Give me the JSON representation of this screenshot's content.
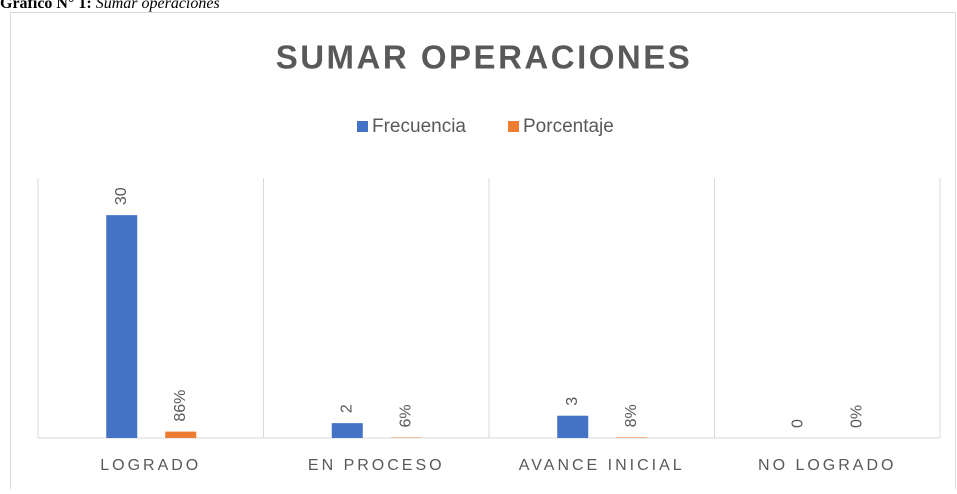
{
  "caption": {
    "label": "Gráfico N° 1:",
    "text": "Sumar operaciones"
  },
  "chart_data": {
    "type": "bar",
    "title": "SUMAR OPERACIONES",
    "categories": [
      "LOGRADO",
      "EN PROCESO",
      "AVANCE INICIAL",
      "NO LOGRADO"
    ],
    "series": [
      {
        "name": "Frecuencia",
        "color": "#4472c4",
        "values": [
          30,
          2,
          3,
          0
        ]
      },
      {
        "name": "Porcentaje",
        "color": "#ed7d31",
        "values": [
          0.86,
          0.06,
          0.08,
          0
        ],
        "value_labels": [
          "86%",
          "6%",
          "8%",
          "0%"
        ]
      }
    ],
    "ylim": [
      0,
      35
    ],
    "legend": "top"
  }
}
